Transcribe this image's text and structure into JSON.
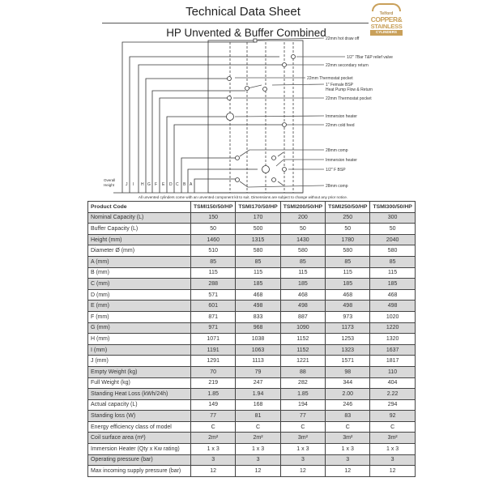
{
  "title": "Technical Data Sheet",
  "subtitle": "HP Unvented & Buffer Combined",
  "logo": {
    "line1": "Telford",
    "line2": "COPPER&",
    "line3": "STAINLESS",
    "line4": "CYLINDERS",
    "color": "#c9a05a"
  },
  "diagram": {
    "labels": [
      "22mm hot draw off",
      "1/2\" 7Bar T&P relief valve",
      "22mm secondary return",
      "22mm Thermostat pocket",
      "1\" Female BSP",
      "Heat Pump Flow & Return",
      "22mm Thermostat pocket",
      "Immersion heater",
      "22mm cold feed",
      "28mm comp",
      "Immersion heater",
      "1/2\" F BSP",
      "28mm comp"
    ],
    "overall_label_1": "Overall",
    "overall_label_2": "Height",
    "dimension_letters": [
      "J",
      "I",
      "H",
      "G",
      "F",
      "E",
      "D",
      "C",
      "B",
      "A"
    ]
  },
  "note": "All unvented cylinders come with an unvented component kit to suit. Dimensions are subject to change without any prior notice.",
  "table": {
    "headers": [
      "Product Code",
      "TSMI150/50/HP",
      "TSMI170/50/HP",
      "TSMI200/50/HP",
      "TSMI250/50/HP",
      "TSMI300/50/HP"
    ],
    "rows": [
      [
        "Nominal Capacity (L)",
        "150",
        "170",
        "200",
        "250",
        "300"
      ],
      [
        "Buffer Capacity (L)",
        "50",
        "500",
        "50",
        "50",
        "50"
      ],
      [
        "Height (mm)",
        "1460",
        "1315",
        "1430",
        "1780",
        "2040"
      ],
      [
        "Diameter Ø (mm)",
        "510",
        "580",
        "580",
        "580",
        "580"
      ],
      [
        "A (mm)",
        "85",
        "85",
        "85",
        "85",
        "85"
      ],
      [
        "B (mm)",
        "115",
        "115",
        "115",
        "115",
        "115"
      ],
      [
        "C (mm)",
        "288",
        "185",
        "185",
        "185",
        "185"
      ],
      [
        "D (mm)",
        "571",
        "468",
        "468",
        "468",
        "468"
      ],
      [
        "E (mm)",
        "601",
        "498",
        "498",
        "498",
        "498"
      ],
      [
        "F (mm)",
        "871",
        "833",
        "887",
        "973",
        "1020"
      ],
      [
        "G (mm)",
        "971",
        "968",
        "1090",
        "1173",
        "1220"
      ],
      [
        "H (mm)",
        "1071",
        "1038",
        "1152",
        "1253",
        "1320"
      ],
      [
        "I (mm)",
        "1191",
        "1063",
        "1152",
        "1323",
        "1637"
      ],
      [
        "J (mm)",
        "1291",
        "1113",
        "1221",
        "1571",
        "1817"
      ],
      [
        "Empty Weight (kg)",
        "70",
        "79",
        "88",
        "98",
        "110"
      ],
      [
        "Full Weight (kg)",
        "219",
        "247",
        "282",
        "344",
        "404"
      ],
      [
        "Standing Heat Loss (kWh/24h)",
        "1.85",
        "1.94",
        "1.85",
        "2.00",
        "2.22"
      ],
      [
        "Actual capacity (L)",
        "149",
        "168",
        "194",
        "246",
        "294"
      ],
      [
        "Standing loss (W)",
        "77",
        "81",
        "77",
        "83",
        "92"
      ],
      [
        "Energy efficiency class of model",
        "C",
        "C",
        "C",
        "C",
        "C"
      ],
      [
        "Coil surface area (m²)",
        "2m²",
        "2m²",
        "3m²",
        "3m²",
        "3m²"
      ],
      [
        "Immersion Heater (Qty x Kw rating)",
        "1 x 3",
        "1 x 3",
        "1 x 3",
        "1 x 3",
        "1 x 3"
      ],
      [
        "Operating pressure (bar)",
        "3",
        "3",
        "3",
        "3",
        "3"
      ],
      [
        "Max incoming supply pressure (bar)",
        "12",
        "12",
        "12",
        "12",
        "12"
      ]
    ]
  }
}
